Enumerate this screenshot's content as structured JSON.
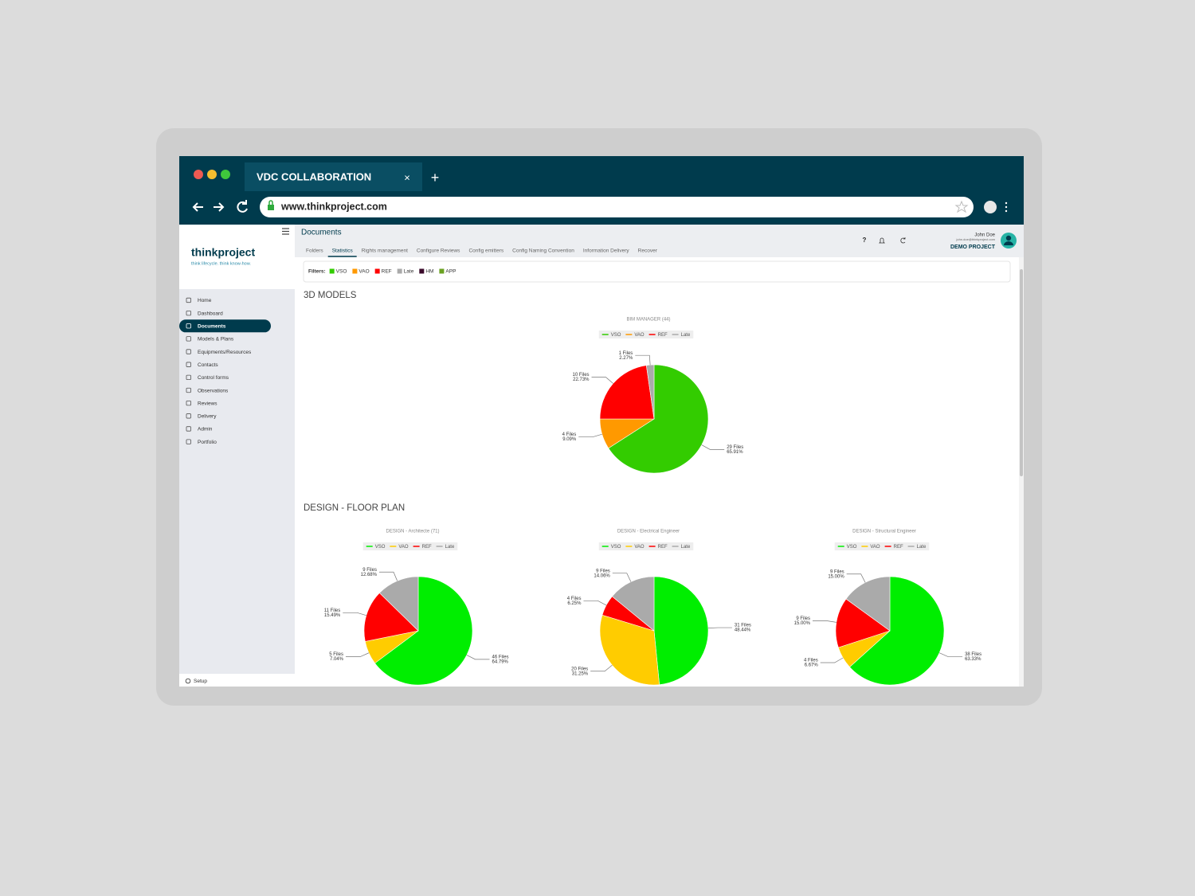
{
  "browser": {
    "tab_title": "VDC COLLABORATION",
    "tab_close": "×",
    "new_tab": "+",
    "url": "www.thinkproject.com"
  },
  "sidebar": {
    "logo": "thinkproject",
    "tagline": "think lifecycle. think know-how.",
    "nav": [
      "Home",
      "Dashboard",
      "Documents",
      "Models & Plans",
      "Equipments/Resources",
      "Contacts",
      "Control forms",
      "Observations",
      "Reviews",
      "Delivery",
      "Admin",
      "Portfolio"
    ],
    "active": 2,
    "setup": "Setup"
  },
  "header": {
    "title": "Documents",
    "tabs": [
      "Folders",
      "Statistics",
      "Rights management",
      "Configure Reviews",
      "Config emitters",
      "Config Naming Convention",
      "Information Delivery",
      "Recover"
    ],
    "active_tab": 1,
    "help": "?",
    "user_name": "John Doe",
    "user_email": "john.doe@thinkproject.com",
    "project": "DEMO PROJECT"
  },
  "filters": {
    "label": "Filters:",
    "items": [
      {
        "name": "VSO",
        "color": "#33cc00"
      },
      {
        "name": "VAO",
        "color": "#ff9900"
      },
      {
        "name": "REF",
        "color": "#ff0000"
      },
      {
        "name": "Late",
        "color": "#aaaaaa"
      },
      {
        "name": "HM",
        "color": "#3a0a2a"
      },
      {
        "name": "APP",
        "color": "#6aa121"
      }
    ]
  },
  "sections": [
    {
      "title": "3D MODELS",
      "charts": [
        {
          "type": "pie",
          "title": "BIM MANAGER (44)",
          "categories": [
            "VSO",
            "VAO",
            "REF",
            "Late"
          ],
          "colors": [
            "#33cc00",
            "#ff9900",
            "#ff0000",
            "#aaaaaa"
          ],
          "values": [
            29,
            4,
            10,
            1
          ],
          "value_labels": [
            "29 Files",
            "4 Files",
            "10 Files",
            "1 Files"
          ],
          "percent_labels": [
            "65.91%",
            "9.09%",
            "22.73%",
            "2.27%"
          ]
        }
      ]
    },
    {
      "title": "DESIGN - FLOOR PLAN",
      "charts": [
        {
          "type": "pie",
          "title": "DESIGN - Architecte (71)",
          "categories": [
            "VSO",
            "VAO",
            "REF",
            "Late"
          ],
          "colors": [
            "#00ee00",
            "#ffcc00",
            "#ff0000",
            "#aaaaaa"
          ],
          "values": [
            46,
            5,
            11,
            9
          ],
          "value_labels": [
            "46 Files",
            "5 Files",
            "11 Files",
            "9 Files"
          ],
          "percent_labels": [
            "64.79%",
            "7.04%",
            "15.49%",
            "12.68%"
          ]
        },
        {
          "type": "pie",
          "title": "DESIGN - Electrical Engineer",
          "categories": [
            "VSO",
            "VAO",
            "REF",
            "Late"
          ],
          "colors": [
            "#00ee00",
            "#ffcc00",
            "#ff0000",
            "#aaaaaa"
          ],
          "values": [
            31,
            20,
            4,
            9
          ],
          "value_labels": [
            "31 Files",
            "20 Files",
            "4 Files",
            "9 Files"
          ],
          "percent_labels": [
            "48.44%",
            "31.25%",
            "6.25%",
            "14.06%"
          ]
        },
        {
          "type": "pie",
          "title": "DESIGN - Structural Engineer",
          "categories": [
            "VSO",
            "VAO",
            "REF",
            "Late"
          ],
          "colors": [
            "#00ee00",
            "#ffcc00",
            "#ff0000",
            "#aaaaaa"
          ],
          "values": [
            38,
            4,
            9,
            9
          ],
          "value_labels": [
            "38 Files",
            "4 Files",
            "9 Files",
            "9 Files"
          ],
          "percent_labels": [
            "63.33%",
            "6.67%",
            "15.00%",
            "15.00%"
          ]
        }
      ]
    }
  ]
}
